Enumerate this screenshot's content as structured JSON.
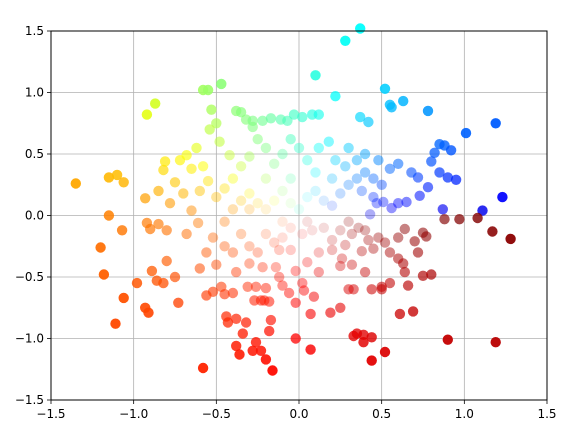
{
  "chart_data": {
    "type": "scatter",
    "title": "",
    "xlabel": "",
    "ylabel": "",
    "xlim": [
      -1.5,
      1.5
    ],
    "ylim": [
      -1.5,
      1.5
    ],
    "grid": true,
    "x_ticks": [
      "−1.5",
      "−1.0",
      "−0.5",
      "0.0",
      "0.5",
      "1.0",
      "1.5"
    ],
    "y_ticks": [
      "−1.5",
      "−1.0",
      "−0.5",
      "0.0",
      "0.5",
      "1.0",
      "1.5"
    ],
    "color_encoding": "hue by angle around origin, opacity by distance from origin",
    "series": [
      {
        "points": [
          [
            -1.35,
            0.26
          ],
          [
            -1.15,
            0.31
          ],
          [
            -1.1,
            0.33
          ],
          [
            -1.06,
            0.27
          ],
          [
            -1.15,
            0.0
          ],
          [
            -1.2,
            -0.26
          ],
          [
            -1.18,
            -0.48
          ],
          [
            -1.07,
            -0.12
          ],
          [
            -1.06,
            -0.67
          ],
          [
            -1.11,
            -0.88
          ],
          [
            -0.98,
            -0.55
          ],
          [
            -0.93,
            -0.75
          ],
          [
            -0.91,
            -0.79
          ],
          [
            -0.89,
            -0.45
          ],
          [
            -0.86,
            -0.53
          ],
          [
            -0.82,
            -0.55
          ],
          [
            -0.8,
            -0.37
          ],
          [
            -0.75,
            -0.5
          ],
          [
            -0.73,
            -0.71
          ],
          [
            -0.92,
            0.82
          ],
          [
            -0.87,
            0.91
          ],
          [
            -0.82,
            0.37
          ],
          [
            -0.81,
            0.44
          ],
          [
            -0.85,
            0.2
          ],
          [
            -0.93,
            0.14
          ],
          [
            -0.92,
            -0.06
          ],
          [
            -0.9,
            -0.11
          ],
          [
            -0.85,
            -0.07
          ],
          [
            -0.8,
            -0.12
          ],
          [
            -0.78,
            0.1
          ],
          [
            -0.75,
            0.27
          ],
          [
            -0.72,
            0.45
          ],
          [
            -0.68,
            0.49
          ],
          [
            -0.65,
            0.38
          ],
          [
            -0.7,
            0.18
          ],
          [
            -0.65,
            0.04
          ],
          [
            -0.68,
            -0.15
          ],
          [
            -0.61,
            -0.06
          ],
          [
            -0.58,
            1.02
          ],
          [
            -0.55,
            1.02
          ],
          [
            -0.47,
            1.07
          ],
          [
            -0.53,
            0.86
          ],
          [
            -0.5,
            0.75
          ],
          [
            -0.54,
            0.7
          ],
          [
            -0.48,
            0.6
          ],
          [
            -0.42,
            0.49
          ],
          [
            -0.38,
            0.85
          ],
          [
            -0.35,
            0.84
          ],
          [
            -0.32,
            0.78
          ],
          [
            -0.28,
            0.77
          ],
          [
            -0.28,
            0.72
          ],
          [
            -0.22,
            0.77
          ],
          [
            -0.17,
            0.79
          ],
          [
            -0.11,
            0.78
          ],
          [
            -0.07,
            0.77
          ],
          [
            -0.03,
            0.82
          ],
          [
            0.02,
            0.8
          ],
          [
            0.08,
            0.82
          ],
          [
            0.12,
            0.82
          ],
          [
            0.1,
            1.14
          ],
          [
            0.22,
            0.97
          ],
          [
            0.28,
            1.42
          ],
          [
            0.37,
            1.52
          ],
          [
            0.37,
            0.8
          ],
          [
            0.42,
            0.76
          ],
          [
            0.52,
            1.03
          ],
          [
            0.55,
            0.9
          ],
          [
            0.56,
            0.88
          ],
          [
            0.63,
            0.93
          ],
          [
            0.78,
            0.85
          ],
          [
            0.82,
            0.51
          ],
          [
            0.85,
            0.58
          ],
          [
            0.88,
            0.57
          ],
          [
            0.92,
            0.53
          ],
          [
            1.01,
            0.67
          ],
          [
            1.19,
            0.75
          ],
          [
            0.8,
            0.44
          ],
          [
            0.85,
            0.35
          ],
          [
            0.9,
            0.31
          ],
          [
            0.95,
            0.29
          ],
          [
            0.78,
            0.23
          ],
          [
            0.72,
            0.31
          ],
          [
            0.68,
            0.35
          ],
          [
            0.73,
            0.16
          ],
          [
            0.65,
            0.11
          ],
          [
            0.6,
            0.1
          ],
          [
            0.51,
            0.11
          ],
          [
            0.47,
            0.1
          ],
          [
            0.56,
            0.06
          ],
          [
            0.43,
            0.01
          ],
          [
            1.11,
            0.04
          ],
          [
            1.23,
            0.15
          ],
          [
            0.87,
            0.05
          ],
          [
            0.88,
            -0.03
          ],
          [
            0.97,
            -0.03
          ],
          [
            1.08,
            -0.02
          ],
          [
            1.17,
            -0.13
          ],
          [
            1.28,
            -0.19
          ],
          [
            0.75,
            -0.14
          ],
          [
            0.64,
            -0.11
          ],
          [
            0.6,
            -0.18
          ],
          [
            0.7,
            -0.21
          ],
          [
            0.77,
            -0.17
          ],
          [
            0.72,
            -0.3
          ],
          [
            0.6,
            -0.35
          ],
          [
            0.63,
            -0.39
          ],
          [
            0.64,
            -0.46
          ],
          [
            0.8,
            -0.48
          ],
          [
            0.75,
            -0.49
          ],
          [
            0.66,
            -0.57
          ],
          [
            0.55,
            -0.55
          ],
          [
            0.5,
            -0.58
          ],
          [
            0.44,
            -0.6
          ],
          [
            0.5,
            -0.6
          ],
          [
            0.69,
            -0.78
          ],
          [
            0.61,
            -0.8
          ],
          [
            0.9,
            -1.01
          ],
          [
            1.19,
            -1.03
          ],
          [
            0.35,
            -0.96
          ],
          [
            0.39,
            -0.97
          ],
          [
            0.33,
            -0.98
          ],
          [
            0.44,
            -0.99
          ],
          [
            0.39,
            -1.03
          ],
          [
            0.52,
            -1.11
          ],
          [
            0.44,
            -1.18
          ],
          [
            0.25,
            -0.75
          ],
          [
            0.19,
            -0.79
          ],
          [
            0.33,
            -0.6
          ],
          [
            0.3,
            -0.6
          ],
          [
            0.4,
            -0.46
          ],
          [
            0.32,
            -0.4
          ],
          [
            0.26,
            -0.35
          ],
          [
            0.2,
            -0.28
          ],
          [
            0.25,
            -0.41
          ],
          [
            0.12,
            -0.46
          ],
          [
            0.03,
            -0.61
          ],
          [
            0.02,
            -0.55
          ],
          [
            0.09,
            -0.66
          ],
          [
            0.07,
            -0.8
          ],
          [
            -0.02,
            -1.0
          ],
          [
            0.07,
            -1.09
          ],
          [
            -0.02,
            -0.71
          ],
          [
            -0.06,
            -0.63
          ],
          [
            -0.1,
            -0.57
          ],
          [
            -0.12,
            -0.5
          ],
          [
            -0.14,
            -0.42
          ],
          [
            -0.18,
            -0.7
          ],
          [
            -0.21,
            -0.69
          ],
          [
            -0.17,
            -0.85
          ],
          [
            -0.18,
            -0.94
          ],
          [
            -0.23,
            -0.69
          ],
          [
            -0.27,
            -0.69
          ],
          [
            -0.26,
            -0.58
          ],
          [
            -0.2,
            -0.59
          ],
          [
            -0.31,
            -0.58
          ],
          [
            -0.32,
            -0.87
          ],
          [
            -0.34,
            -0.96
          ],
          [
            -0.38,
            -1.06
          ],
          [
            -0.36,
            -1.13
          ],
          [
            -0.28,
            -1.1
          ],
          [
            -0.23,
            -1.1
          ],
          [
            -0.16,
            -1.26
          ],
          [
            -0.2,
            -1.17
          ],
          [
            -0.26,
            -1.03
          ],
          [
            -0.58,
            -1.24
          ],
          [
            -0.43,
            -0.87
          ],
          [
            -0.38,
            -0.84
          ],
          [
            -0.44,
            -0.82
          ],
          [
            -0.4,
            -0.63
          ],
          [
            -0.45,
            -0.64
          ],
          [
            -0.47,
            -0.58
          ],
          [
            -0.52,
            -0.62
          ],
          [
            -0.56,
            -0.65
          ],
          [
            -0.6,
            -0.43
          ],
          [
            -0.38,
            -0.46
          ],
          [
            -0.3,
            -0.39
          ],
          [
            -0.22,
            -0.42
          ],
          [
            -0.12,
            -0.28
          ],
          [
            -0.05,
            -0.28
          ],
          [
            -0.02,
            -0.45
          ],
          [
            0.05,
            -0.38
          ],
          [
            0.12,
            -0.3
          ],
          [
            0.2,
            -0.2
          ],
          [
            0.28,
            -0.24
          ],
          [
            0.32,
            -0.15
          ],
          [
            0.4,
            -0.12
          ],
          [
            0.48,
            -0.18
          ],
          [
            0.52,
            -0.22
          ],
          [
            0.55,
            -0.3
          ],
          [
            0.45,
            -0.27
          ],
          [
            0.38,
            -0.29
          ],
          [
            0.36,
            -0.1
          ],
          [
            0.42,
            -0.2
          ],
          [
            0.3,
            -0.05
          ],
          [
            0.25,
            -0.12
          ],
          [
            0.15,
            -0.1
          ],
          [
            0.08,
            -0.12
          ],
          [
            0.02,
            -0.15
          ],
          [
            -0.05,
            -0.1
          ],
          [
            -0.1,
            -0.18
          ],
          [
            -0.15,
            -0.22
          ],
          [
            -0.2,
            -0.15
          ],
          [
            -0.25,
            -0.3
          ],
          [
            -0.3,
            -0.25
          ],
          [
            -0.35,
            -0.15
          ],
          [
            -0.4,
            -0.3
          ],
          [
            -0.45,
            -0.25
          ],
          [
            -0.5,
            -0.4
          ],
          [
            -0.52,
            -0.18
          ],
          [
            -0.56,
            -0.3
          ],
          [
            -0.45,
            -0.05
          ],
          [
            -0.4,
            0.05
          ],
          [
            -0.35,
            0.12
          ],
          [
            -0.3,
            0.18
          ],
          [
            -0.25,
            0.1
          ],
          [
            -0.2,
            0.05
          ],
          [
            -0.15,
            0.12
          ],
          [
            -0.1,
            0.2
          ],
          [
            -0.05,
            0.1
          ],
          [
            0.0,
            0.05
          ],
          [
            0.05,
            0.15
          ],
          [
            0.1,
            0.2
          ],
          [
            0.15,
            0.12
          ],
          [
            0.2,
            0.08
          ],
          [
            0.25,
            0.18
          ],
          [
            0.3,
            0.25
          ],
          [
            0.35,
            0.3
          ],
          [
            0.4,
            0.35
          ],
          [
            0.45,
            0.3
          ],
          [
            0.5,
            0.25
          ],
          [
            0.55,
            0.38
          ],
          [
            0.6,
            0.42
          ],
          [
            0.48,
            0.45
          ],
          [
            0.4,
            0.5
          ],
          [
            0.35,
            0.45
          ],
          [
            0.3,
            0.55
          ],
          [
            0.22,
            0.45
          ],
          [
            0.18,
            0.6
          ],
          [
            0.12,
            0.55
          ],
          [
            0.05,
            0.45
          ],
          [
            0.0,
            0.55
          ],
          [
            -0.05,
            0.62
          ],
          [
            -0.1,
            0.5
          ],
          [
            -0.15,
            0.42
          ],
          [
            -0.2,
            0.55
          ],
          [
            -0.25,
            0.62
          ],
          [
            -0.3,
            0.48
          ],
          [
            -0.35,
            0.4
          ],
          [
            -0.4,
            0.3
          ],
          [
            -0.45,
            0.22
          ],
          [
            -0.5,
            0.15
          ],
          [
            -0.55,
            0.28
          ],
          [
            -0.58,
            0.4
          ],
          [
            -0.62,
            0.55
          ],
          [
            -0.6,
            0.2
          ],
          [
            0.1,
            0.35
          ],
          [
            0.2,
            0.3
          ],
          [
            -0.05,
            0.3
          ],
          [
            -0.2,
            0.3
          ],
          [
            0.28,
            0.4
          ],
          [
            0.38,
            0.2
          ],
          [
            0.45,
            0.15
          ],
          [
            -0.3,
            0.05
          ],
          [
            -0.1,
            -0.05
          ],
          [
            0.05,
            -0.05
          ]
        ]
      }
    ]
  }
}
